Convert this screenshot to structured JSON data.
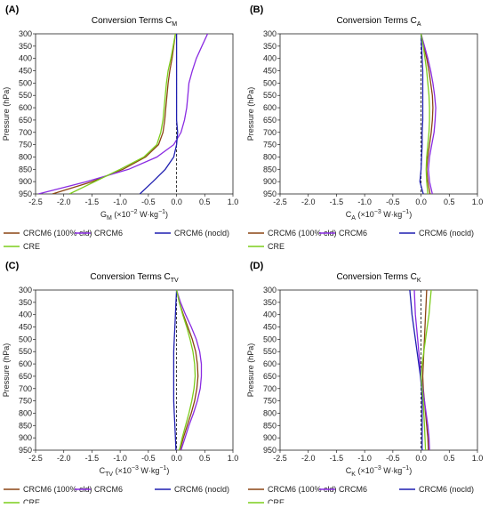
{
  "colors": {
    "CRCM6 (100% cld)": "#8b4513",
    "CRCM6": "#8a2be2",
    "CRCM6 (nocld)": "#1f1fb0",
    "CRE": "#7ccd1c",
    "zero_line": "#222222"
  },
  "legend_labels": [
    "CRCM6 (100% cld)",
    "CRCM6",
    "CRCM6 (nocld)",
    "CRE"
  ],
  "chart_data": [
    {
      "panel": "(A)",
      "type": "line",
      "title_main": "Conversion Terms C",
      "title_sub": "M",
      "xlabel_main": "G",
      "xlabel_sub": "M",
      "xlabel_unit_pre": " (×10",
      "xlabel_exp": "−2",
      "xlabel_unit_post": " W·kg",
      "xlabel_exp2": "−1",
      "xlabel_close": ")",
      "ylabel": "Pressure (hPa)",
      "xlim": [
        -2.5,
        1.0
      ],
      "xticks": [
        -2.5,
        -2.0,
        -1.5,
        -1.0,
        -0.5,
        0.0,
        0.5,
        1.0
      ],
      "xtick_labels": [
        "-2.5",
        "-2.0",
        "-1.5",
        "-1.0",
        "-0.5",
        "0.0",
        "0.5",
        "1.0"
      ],
      "ylim": [
        950,
        300
      ],
      "yticks": [
        300,
        350,
        400,
        450,
        500,
        550,
        600,
        650,
        700,
        750,
        800,
        850,
        900,
        950
      ],
      "pressure": [
        300,
        350,
        400,
        450,
        500,
        550,
        600,
        650,
        700,
        750,
        800,
        850,
        900,
        950
      ],
      "series": [
        {
          "name": "CRCM6 (100% cld)",
          "values": [
            -0.02,
            -0.05,
            -0.08,
            -0.12,
            -0.15,
            -0.17,
            -0.19,
            -0.21,
            -0.24,
            -0.32,
            -0.55,
            -0.95,
            -1.5,
            -2.2
          ]
        },
        {
          "name": "CRCM6",
          "values": [
            0.55,
            0.45,
            0.35,
            0.28,
            0.22,
            0.2,
            0.18,
            0.14,
            0.08,
            -0.05,
            -0.35,
            -0.85,
            -1.6,
            -2.45
          ]
        },
        {
          "name": "CRCM6 (nocld)",
          "values": [
            0.0,
            0.0,
            0.0,
            0.0,
            0.0,
            0.0,
            0.0,
            0.0,
            0.02,
            0.0,
            -0.05,
            -0.2,
            -0.42,
            -0.65
          ]
        },
        {
          "name": "CRE",
          "values": [
            -0.02,
            -0.06,
            -0.1,
            -0.15,
            -0.18,
            -0.2,
            -0.22,
            -0.24,
            -0.28,
            -0.35,
            -0.58,
            -1.0,
            -1.45,
            -1.9
          ]
        }
      ]
    },
    {
      "panel": "(B)",
      "type": "line",
      "title_main": "Conversion Terms C",
      "title_sub": "A",
      "xlabel_main": "C",
      "xlabel_sub": "A",
      "xlabel_unit_pre": " (×10",
      "xlabel_exp": "−3",
      "xlabel_unit_post": " W·kg",
      "xlabel_exp2": "−1",
      "xlabel_close": ")",
      "ylabel": "Pressure (hPa)",
      "xlim": [
        -2.5,
        1.0
      ],
      "xticks": [
        -2.5,
        -2.0,
        -1.5,
        -1.0,
        -0.5,
        0.0,
        0.5,
        1.0
      ],
      "xtick_labels": [
        "-2.5",
        "-2.0",
        "-1.5",
        "-1.0",
        "-0.5",
        "0.0",
        "0.5",
        "1.0"
      ],
      "ylim": [
        950,
        300
      ],
      "yticks": [
        300,
        350,
        400,
        450,
        500,
        550,
        600,
        650,
        700,
        750,
        800,
        850,
        900,
        950
      ],
      "pressure": [
        300,
        350,
        400,
        450,
        500,
        550,
        600,
        650,
        700,
        750,
        800,
        850,
        900,
        950
      ],
      "series": [
        {
          "name": "CRCM6 (100% cld)",
          "values": [
            0.0,
            0.05,
            0.1,
            0.14,
            0.17,
            0.2,
            0.21,
            0.2,
            0.18,
            0.15,
            0.12,
            0.1,
            0.12,
            0.16
          ]
        },
        {
          "name": "CRCM6",
          "values": [
            0.0,
            0.06,
            0.12,
            0.17,
            0.21,
            0.24,
            0.26,
            0.25,
            0.23,
            0.19,
            0.15,
            0.13,
            0.15,
            0.2
          ]
        },
        {
          "name": "CRCM6 (nocld)",
          "values": [
            0.0,
            0.01,
            0.02,
            0.03,
            0.03,
            0.03,
            0.03,
            0.03,
            0.02,
            0.02,
            0.01,
            0.0,
            -0.02,
            0.04
          ]
        },
        {
          "name": "CRE",
          "values": [
            0.0,
            0.04,
            0.07,
            0.1,
            0.12,
            0.14,
            0.15,
            0.15,
            0.14,
            0.12,
            0.1,
            0.09,
            0.1,
            0.12
          ]
        }
      ]
    },
    {
      "panel": "(C)",
      "type": "line",
      "title_main": "Conversion Terms C",
      "title_sub": "TV",
      "xlabel_main": "C",
      "xlabel_sub": "TV",
      "xlabel_unit_pre": " (×10",
      "xlabel_exp": "−3",
      "xlabel_unit_post": " W·kg",
      "xlabel_exp2": "−1",
      "xlabel_close": ")",
      "ylabel": "Pressure (hPa)",
      "xlim": [
        -2.5,
        1.0
      ],
      "xticks": [
        -2.5,
        -2.0,
        -1.5,
        -1.0,
        -0.5,
        0.0,
        0.5,
        1.0
      ],
      "xtick_labels": [
        "-2.5",
        "-2.0",
        "-1.5",
        "-1.0",
        "-0.5",
        "0.0",
        "0.5",
        "1.0"
      ],
      "ylim": [
        950,
        300
      ],
      "yticks": [
        300,
        350,
        400,
        450,
        500,
        550,
        600,
        650,
        700,
        750,
        800,
        850,
        900,
        950
      ],
      "pressure": [
        300,
        350,
        400,
        450,
        500,
        550,
        600,
        650,
        700,
        750,
        800,
        850,
        900,
        950
      ],
      "series": [
        {
          "name": "CRCM6 (100% cld)",
          "values": [
            0.0,
            0.05,
            0.12,
            0.2,
            0.28,
            0.34,
            0.37,
            0.38,
            0.36,
            0.32,
            0.26,
            0.19,
            0.12,
            0.06
          ]
        },
        {
          "name": "CRCM6",
          "values": [
            0.0,
            0.07,
            0.16,
            0.26,
            0.35,
            0.41,
            0.44,
            0.44,
            0.42,
            0.37,
            0.3,
            0.22,
            0.15,
            0.08
          ]
        },
        {
          "name": "CRCM6 (nocld)",
          "values": [
            0.0,
            -0.01,
            -0.02,
            -0.03,
            -0.04,
            -0.05,
            -0.05,
            -0.05,
            -0.05,
            -0.05,
            -0.04,
            -0.03,
            -0.02,
            -0.01
          ]
        },
        {
          "name": "CRE",
          "values": [
            0.0,
            0.05,
            0.11,
            0.18,
            0.24,
            0.29,
            0.32,
            0.33,
            0.31,
            0.27,
            0.22,
            0.16,
            0.1,
            0.05
          ]
        }
      ]
    },
    {
      "panel": "(D)",
      "type": "line",
      "title_main": "Conversion Terms C",
      "title_sub": "K",
      "xlabel_main": "C",
      "xlabel_sub": "K",
      "xlabel_unit_pre": " (×10",
      "xlabel_exp": "−3",
      "xlabel_unit_post": " W·kg",
      "xlabel_exp2": "−1",
      "xlabel_close": ")",
      "ylabel": "Pressure (hPa)",
      "xlim": [
        -2.5,
        1.0
      ],
      "xticks": [
        -2.5,
        -2.0,
        -1.5,
        -1.0,
        -0.5,
        0.0,
        0.5,
        1.0
      ],
      "xtick_labels": [
        "-2.5",
        "-2.0",
        "-1.5",
        "-1.0",
        "-0.5",
        "0.0",
        "0.5",
        "1.0"
      ],
      "ylim": [
        950,
        300
      ],
      "yticks": [
        300,
        350,
        400,
        450,
        500,
        550,
        600,
        650,
        700,
        750,
        800,
        850,
        900,
        950
      ],
      "pressure": [
        300,
        350,
        400,
        450,
        500,
        550,
        600,
        650,
        700,
        750,
        800,
        850,
        900,
        950
      ],
      "series": [
        {
          "name": "CRCM6 (100% cld)",
          "values": [
            0.1,
            0.09,
            0.08,
            0.07,
            0.06,
            0.05,
            0.04,
            0.03,
            0.04,
            0.06,
            0.08,
            0.1,
            0.12,
            0.13
          ]
        },
        {
          "name": "CRCM6",
          "values": [
            -0.12,
            -0.11,
            -0.1,
            -0.08,
            -0.06,
            -0.04,
            -0.02,
            0.0,
            0.03,
            0.06,
            0.09,
            0.12,
            0.14,
            0.15
          ]
        },
        {
          "name": "CRCM6 (nocld)",
          "values": [
            -0.2,
            -0.18,
            -0.16,
            -0.13,
            -0.1,
            -0.07,
            -0.04,
            -0.01,
            0.01,
            0.02,
            0.02,
            0.02,
            0.02,
            0.02
          ]
        },
        {
          "name": "CRE",
          "values": [
            0.18,
            0.16,
            0.14,
            0.11,
            0.08,
            0.05,
            0.02,
            0.0,
            0.02,
            0.04,
            0.05,
            0.06,
            0.07,
            0.08
          ]
        }
      ]
    }
  ]
}
